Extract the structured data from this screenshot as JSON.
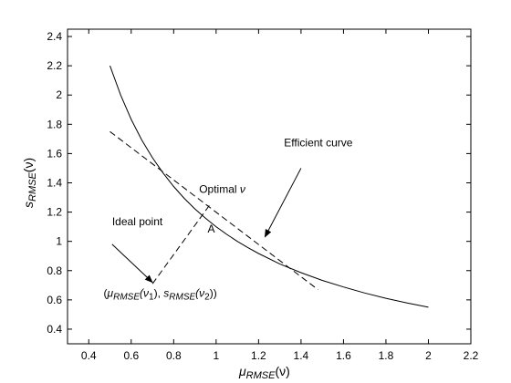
{
  "chart_data": {
    "type": "line",
    "xlim": [
      0.3,
      2.2
    ],
    "ylim": [
      0.3,
      2.45
    ],
    "x_ticks": [
      0.4,
      0.6,
      0.8,
      1,
      1.2,
      1.4,
      1.6,
      1.8,
      2,
      2.2
    ],
    "x_tick_labels": [
      "0.4",
      "0.6",
      "0.8",
      "1",
      "1.2",
      "1.4",
      "1.6",
      "1.8",
      "2",
      "2.2"
    ],
    "y_ticks": [
      0.4,
      0.6,
      0.8,
      1,
      1.2,
      1.4,
      1.6,
      1.8,
      2,
      2.2,
      2.4
    ],
    "y_tick_labels": [
      "0.4",
      "0.6",
      "0.8",
      "1",
      "1.2",
      "1.4",
      "1.6",
      "1.8",
      "2",
      "2.2",
      "2.4"
    ],
    "grid": false,
    "xlabel": {
      "main": "μ",
      "sub": "RMSE",
      "rest": "(ν)"
    },
    "ylabel": {
      "main": "s",
      "sub": "RMSE",
      "rest": "(ν)"
    },
    "series": [
      {
        "style": "solid",
        "color": "#000000",
        "x": [
          0.5,
          0.55,
          0.6,
          0.65,
          0.7,
          0.75,
          0.8,
          0.85,
          0.9,
          0.95,
          1.0,
          1.05,
          1.1,
          1.15,
          1.2,
          1.3,
          1.4,
          1.5,
          1.6,
          1.7,
          1.8,
          1.9,
          2.0
        ],
        "y": [
          2.2,
          2.0,
          1.833,
          1.692,
          1.571,
          1.467,
          1.375,
          1.294,
          1.222,
          1.158,
          1.1,
          1.048,
          1.0,
          0.957,
          0.917,
          0.846,
          0.786,
          0.733,
          0.688,
          0.647,
          0.611,
          0.579,
          0.55
        ]
      },
      {
        "style": "dashed",
        "color": "#000000",
        "x": [
          0.5,
          1.48
        ],
        "y": [
          1.75,
          0.67
        ]
      },
      {
        "style": "dashed",
        "color": "#000000",
        "x": [
          0.7,
          0.97
        ],
        "y": [
          0.71,
          1.25
        ]
      }
    ],
    "annotations": {
      "efficient": {
        "label": "Efficient curve",
        "x": 1.32,
        "y": 1.65,
        "arrow_from": [
          1.4,
          1.5
        ],
        "arrow_to": [
          1.23,
          1.03
        ]
      },
      "optimal": {
        "label": "Optimal ",
        "symbol": "ν",
        "x": 0.92,
        "y": 1.33
      },
      "point_a": {
        "label": "A",
        "x": 0.96,
        "y": 1.06
      },
      "ideal": {
        "label": "Ideal point",
        "x": 0.51,
        "y": 1.11,
        "arrow_from": [
          0.51,
          0.98
        ],
        "arrow_to": [
          0.7,
          0.72
        ]
      },
      "ideal_coords": {
        "x": 0.47,
        "y": 0.62,
        "open": "(",
        "mu": "μ",
        "sub1": "RMSE",
        "nu1": "(ν",
        "one": "1",
        "mid": "), ",
        "s": "s",
        "sub2": "RMSE",
        "nu2": "(ν",
        "two": "2",
        "close": "))"
      }
    }
  }
}
